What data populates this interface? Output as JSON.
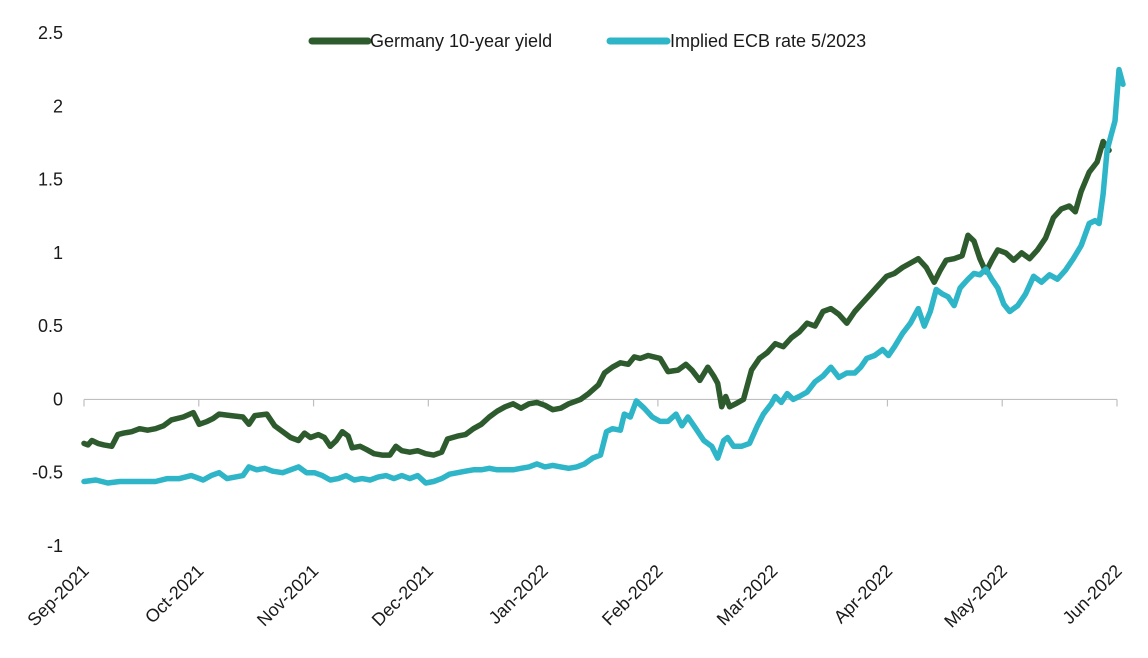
{
  "chart_data": {
    "type": "line",
    "title": "",
    "xlabel": "",
    "ylabel": "",
    "ylim": [
      -1,
      2.5
    ],
    "yticks": [
      "2.5",
      "2",
      "1.5",
      "1",
      "0.5",
      "0",
      "-0.5",
      "-1"
    ],
    "xticks": [
      "Sep-2021",
      "Oct-2021",
      "Nov-2021",
      "Dec-2021",
      "Jan-2022",
      "Feb-2022",
      "Mar-2022",
      "Apr-2022",
      "May-2022",
      "Jun-2022"
    ],
    "grid": false,
    "legend_position": "top",
    "series": [
      {
        "name": "Germany 10-year yield",
        "color": "#2e5b2e",
        "points": [
          [
            0.0,
            -0.3
          ],
          [
            0.1,
            -0.31
          ],
          [
            0.2,
            -0.28
          ],
          [
            0.35,
            -0.3
          ],
          [
            0.5,
            -0.31
          ],
          [
            0.7,
            -0.32
          ],
          [
            0.85,
            -0.24
          ],
          [
            1.0,
            -0.23
          ],
          [
            1.2,
            -0.22
          ],
          [
            1.4,
            -0.2
          ],
          [
            1.6,
            -0.21
          ],
          [
            1.8,
            -0.2
          ],
          [
            2.0,
            -0.18
          ],
          [
            2.2,
            -0.14
          ],
          [
            2.5,
            -0.12
          ],
          [
            2.75,
            -0.09
          ],
          [
            2.9,
            -0.17
          ],
          [
            3.1,
            -0.15
          ],
          [
            3.25,
            -0.13
          ],
          [
            3.4,
            -0.1
          ],
          [
            3.7,
            -0.11
          ],
          [
            4.0,
            -0.12
          ],
          [
            4.15,
            -0.17
          ],
          [
            4.3,
            -0.11
          ],
          [
            4.6,
            -0.1
          ],
          [
            4.8,
            -0.18
          ],
          [
            5.0,
            -0.22
          ],
          [
            5.2,
            -0.26
          ],
          [
            5.4,
            -0.28
          ],
          [
            5.55,
            -0.23
          ],
          [
            5.7,
            -0.26
          ],
          [
            5.9,
            -0.24
          ],
          [
            6.05,
            -0.26
          ],
          [
            6.2,
            -0.32
          ],
          [
            6.35,
            -0.28
          ],
          [
            6.5,
            -0.22
          ],
          [
            6.65,
            -0.25
          ],
          [
            6.75,
            -0.33
          ],
          [
            6.95,
            -0.32
          ],
          [
            7.1,
            -0.34
          ],
          [
            7.3,
            -0.37
          ],
          [
            7.5,
            -0.38
          ],
          [
            7.7,
            -0.38
          ],
          [
            7.85,
            -0.32
          ],
          [
            8.0,
            -0.35
          ],
          [
            8.2,
            -0.36
          ],
          [
            8.4,
            -0.35
          ],
          [
            8.6,
            -0.37
          ],
          [
            8.8,
            -0.38
          ],
          [
            9.0,
            -0.36
          ],
          [
            9.15,
            -0.27
          ],
          [
            9.4,
            -0.25
          ],
          [
            9.6,
            -0.24
          ],
          [
            9.8,
            -0.2
          ],
          [
            10.0,
            -0.17
          ],
          [
            10.2,
            -0.12
          ],
          [
            10.4,
            -0.08
          ],
          [
            10.6,
            -0.05
          ],
          [
            10.8,
            -0.03
          ],
          [
            11.0,
            -0.06
          ],
          [
            11.2,
            -0.03
          ],
          [
            11.4,
            -0.02
          ],
          [
            11.6,
            -0.04
          ],
          [
            11.8,
            -0.07
          ],
          [
            12.0,
            -0.06
          ],
          [
            12.2,
            -0.03
          ],
          [
            12.5,
            0.0
          ],
          [
            12.7,
            0.04
          ],
          [
            12.95,
            0.1
          ],
          [
            13.1,
            0.18
          ],
          [
            13.3,
            0.22
          ],
          [
            13.5,
            0.25
          ],
          [
            13.7,
            0.24
          ],
          [
            13.85,
            0.29
          ],
          [
            14.0,
            0.28
          ],
          [
            14.2,
            0.3
          ],
          [
            14.5,
            0.28
          ],
          [
            14.7,
            0.19
          ],
          [
            14.95,
            0.2
          ],
          [
            15.15,
            0.24
          ],
          [
            15.3,
            0.2
          ],
          [
            15.5,
            0.13
          ],
          [
            15.7,
            0.22
          ],
          [
            15.85,
            0.16
          ],
          [
            15.95,
            0.11
          ],
          [
            16.05,
            -0.05
          ],
          [
            16.15,
            0.02
          ],
          [
            16.25,
            -0.05
          ],
          [
            16.4,
            -0.03
          ],
          [
            16.6,
            0.0
          ],
          [
            16.8,
            0.2
          ],
          [
            17.0,
            0.28
          ],
          [
            17.2,
            0.32
          ],
          [
            17.4,
            0.38
          ],
          [
            17.6,
            0.36
          ],
          [
            17.8,
            0.42
          ],
          [
            18.0,
            0.46
          ],
          [
            18.2,
            0.52
          ],
          [
            18.4,
            0.5
          ],
          [
            18.6,
            0.6
          ],
          [
            18.8,
            0.62
          ],
          [
            19.0,
            0.58
          ],
          [
            19.2,
            0.52
          ],
          [
            19.4,
            0.6
          ],
          [
            19.6,
            0.66
          ],
          [
            19.8,
            0.72
          ],
          [
            20.0,
            0.78
          ],
          [
            20.2,
            0.84
          ],
          [
            20.4,
            0.86
          ],
          [
            20.6,
            0.9
          ],
          [
            20.8,
            0.93
          ],
          [
            21.0,
            0.96
          ],
          [
            21.2,
            0.9
          ],
          [
            21.4,
            0.8
          ],
          [
            21.55,
            0.88
          ],
          [
            21.7,
            0.95
          ],
          [
            21.9,
            0.96
          ],
          [
            22.1,
            0.98
          ],
          [
            22.25,
            1.12
          ],
          [
            22.4,
            1.08
          ],
          [
            22.55,
            0.96
          ],
          [
            22.7,
            0.87
          ],
          [
            22.85,
            0.95
          ],
          [
            23.0,
            1.02
          ],
          [
            23.2,
            1.0
          ],
          [
            23.4,
            0.95
          ],
          [
            23.6,
            1.0
          ],
          [
            23.8,
            0.96
          ],
          [
            24.0,
            1.02
          ],
          [
            24.2,
            1.1
          ],
          [
            24.4,
            1.24
          ],
          [
            24.6,
            1.3
          ],
          [
            24.8,
            1.32
          ],
          [
            24.95,
            1.28
          ],
          [
            25.1,
            1.42
          ],
          [
            25.3,
            1.55
          ],
          [
            25.5,
            1.62
          ],
          [
            25.65,
            1.76
          ],
          [
            25.8,
            1.7
          ]
        ]
      },
      {
        "name": "Implied ECB rate 5/2023",
        "color": "#2eb5c8",
        "points": [
          [
            0.0,
            -0.56
          ],
          [
            0.3,
            -0.55
          ],
          [
            0.6,
            -0.57
          ],
          [
            0.9,
            -0.56
          ],
          [
            1.2,
            -0.56
          ],
          [
            1.5,
            -0.56
          ],
          [
            1.8,
            -0.56
          ],
          [
            2.1,
            -0.54
          ],
          [
            2.4,
            -0.54
          ],
          [
            2.7,
            -0.52
          ],
          [
            3.0,
            -0.55
          ],
          [
            3.2,
            -0.52
          ],
          [
            3.4,
            -0.5
          ],
          [
            3.6,
            -0.54
          ],
          [
            3.8,
            -0.53
          ],
          [
            4.0,
            -0.52
          ],
          [
            4.15,
            -0.46
          ],
          [
            4.35,
            -0.48
          ],
          [
            4.55,
            -0.47
          ],
          [
            4.75,
            -0.49
          ],
          [
            5.0,
            -0.5
          ],
          [
            5.2,
            -0.48
          ],
          [
            5.4,
            -0.46
          ],
          [
            5.6,
            -0.5
          ],
          [
            5.8,
            -0.5
          ],
          [
            6.0,
            -0.52
          ],
          [
            6.2,
            -0.55
          ],
          [
            6.4,
            -0.54
          ],
          [
            6.6,
            -0.52
          ],
          [
            6.8,
            -0.55
          ],
          [
            7.0,
            -0.54
          ],
          [
            7.2,
            -0.55
          ],
          [
            7.4,
            -0.53
          ],
          [
            7.6,
            -0.52
          ],
          [
            7.8,
            -0.54
          ],
          [
            8.0,
            -0.52
          ],
          [
            8.2,
            -0.54
          ],
          [
            8.4,
            -0.52
          ],
          [
            8.6,
            -0.57
          ],
          [
            8.8,
            -0.56
          ],
          [
            9.0,
            -0.54
          ],
          [
            9.2,
            -0.51
          ],
          [
            9.4,
            -0.5
          ],
          [
            9.6,
            -0.49
          ],
          [
            9.8,
            -0.48
          ],
          [
            10.0,
            -0.48
          ],
          [
            10.2,
            -0.47
          ],
          [
            10.4,
            -0.48
          ],
          [
            10.6,
            -0.48
          ],
          [
            10.8,
            -0.48
          ],
          [
            11.0,
            -0.47
          ],
          [
            11.2,
            -0.46
          ],
          [
            11.4,
            -0.44
          ],
          [
            11.6,
            -0.46
          ],
          [
            11.8,
            -0.45
          ],
          [
            12.0,
            -0.46
          ],
          [
            12.2,
            -0.47
          ],
          [
            12.4,
            -0.46
          ],
          [
            12.6,
            -0.44
          ],
          [
            12.8,
            -0.4
          ],
          [
            13.0,
            -0.38
          ],
          [
            13.15,
            -0.22
          ],
          [
            13.3,
            -0.2
          ],
          [
            13.5,
            -0.21
          ],
          [
            13.6,
            -0.1
          ],
          [
            13.75,
            -0.12
          ],
          [
            13.9,
            -0.01
          ],
          [
            14.1,
            -0.06
          ],
          [
            14.3,
            -0.12
          ],
          [
            14.5,
            -0.15
          ],
          [
            14.7,
            -0.15
          ],
          [
            14.9,
            -0.1
          ],
          [
            15.05,
            -0.18
          ],
          [
            15.2,
            -0.12
          ],
          [
            15.4,
            -0.2
          ],
          [
            15.6,
            -0.28
          ],
          [
            15.8,
            -0.32
          ],
          [
            15.95,
            -0.4
          ],
          [
            16.1,
            -0.28
          ],
          [
            16.2,
            -0.26
          ],
          [
            16.35,
            -0.32
          ],
          [
            16.55,
            -0.32
          ],
          [
            16.75,
            -0.3
          ],
          [
            16.95,
            -0.18
          ],
          [
            17.1,
            -0.1
          ],
          [
            17.3,
            -0.03
          ],
          [
            17.4,
            0.02
          ],
          [
            17.55,
            -0.02
          ],
          [
            17.7,
            0.04
          ],
          [
            17.85,
            0.0
          ],
          [
            18.0,
            0.02
          ],
          [
            18.2,
            0.05
          ],
          [
            18.4,
            0.12
          ],
          [
            18.6,
            0.16
          ],
          [
            18.8,
            0.22
          ],
          [
            19.0,
            0.15
          ],
          [
            19.2,
            0.18
          ],
          [
            19.4,
            0.18
          ],
          [
            19.55,
            0.22
          ],
          [
            19.7,
            0.28
          ],
          [
            19.9,
            0.3
          ],
          [
            20.1,
            0.34
          ],
          [
            20.25,
            0.3
          ],
          [
            20.4,
            0.36
          ],
          [
            20.6,
            0.45
          ],
          [
            20.8,
            0.52
          ],
          [
            21.0,
            0.62
          ],
          [
            21.15,
            0.5
          ],
          [
            21.3,
            0.6
          ],
          [
            21.45,
            0.75
          ],
          [
            21.6,
            0.72
          ],
          [
            21.75,
            0.7
          ],
          [
            21.9,
            0.64
          ],
          [
            22.05,
            0.76
          ],
          [
            22.25,
            0.82
          ],
          [
            22.4,
            0.86
          ],
          [
            22.55,
            0.85
          ],
          [
            22.7,
            0.89
          ],
          [
            22.85,
            0.82
          ],
          [
            23.0,
            0.76
          ],
          [
            23.15,
            0.65
          ],
          [
            23.3,
            0.6
          ],
          [
            23.5,
            0.64
          ],
          [
            23.7,
            0.72
          ],
          [
            23.9,
            0.84
          ],
          [
            24.1,
            0.8
          ],
          [
            24.3,
            0.85
          ],
          [
            24.5,
            0.82
          ],
          [
            24.7,
            0.88
          ],
          [
            24.9,
            0.96
          ],
          [
            25.1,
            1.05
          ],
          [
            25.3,
            1.2
          ],
          [
            25.45,
            1.22
          ],
          [
            25.55,
            1.2
          ],
          [
            25.65,
            1.4
          ],
          [
            25.75,
            1.7
          ],
          [
            25.85,
            1.8
          ],
          [
            25.95,
            1.9
          ],
          [
            26.05,
            2.25
          ],
          [
            26.15,
            2.15
          ]
        ]
      }
    ]
  }
}
